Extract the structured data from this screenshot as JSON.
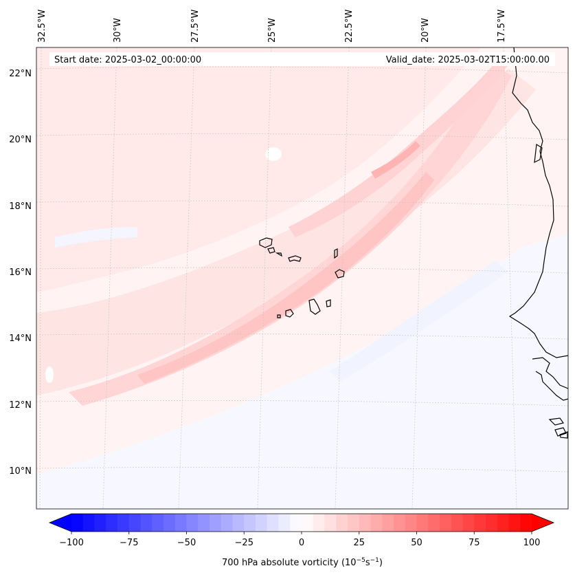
{
  "map": {
    "start_date_label": "Start date: 2025-03-02_00:00:00",
    "valid_date_label": "Valid_date: 2025-03-02T15:00:00.00",
    "lon_labels": [
      "32.5°W",
      "30°W",
      "27.5°W",
      "25°W",
      "22.5°W",
      "20°W",
      "17.5°W"
    ],
    "lat_labels": [
      "22°N",
      "20°N",
      "18°N",
      "16°N",
      "14°N",
      "12°N",
      "10°N"
    ],
    "coastline_color": "#000000",
    "gridlines": true
  },
  "colorbar": {
    "label_prefix": "700 hPa absolute vorticity (10",
    "label_exp1": "−5",
    "label_mid": "s",
    "label_exp2": "−1",
    "label_suffix": ")",
    "ticks": [
      "−100",
      "−75",
      "−50",
      "−25",
      "0",
      "25",
      "50",
      "75",
      "100"
    ],
    "vmin": -100,
    "vmax": 100,
    "step": 5,
    "extend": "both",
    "colormap": "bwr",
    "low_color": "#0000ff",
    "mid_color": "#ffffff",
    "high_color": "#ff0000"
  }
}
